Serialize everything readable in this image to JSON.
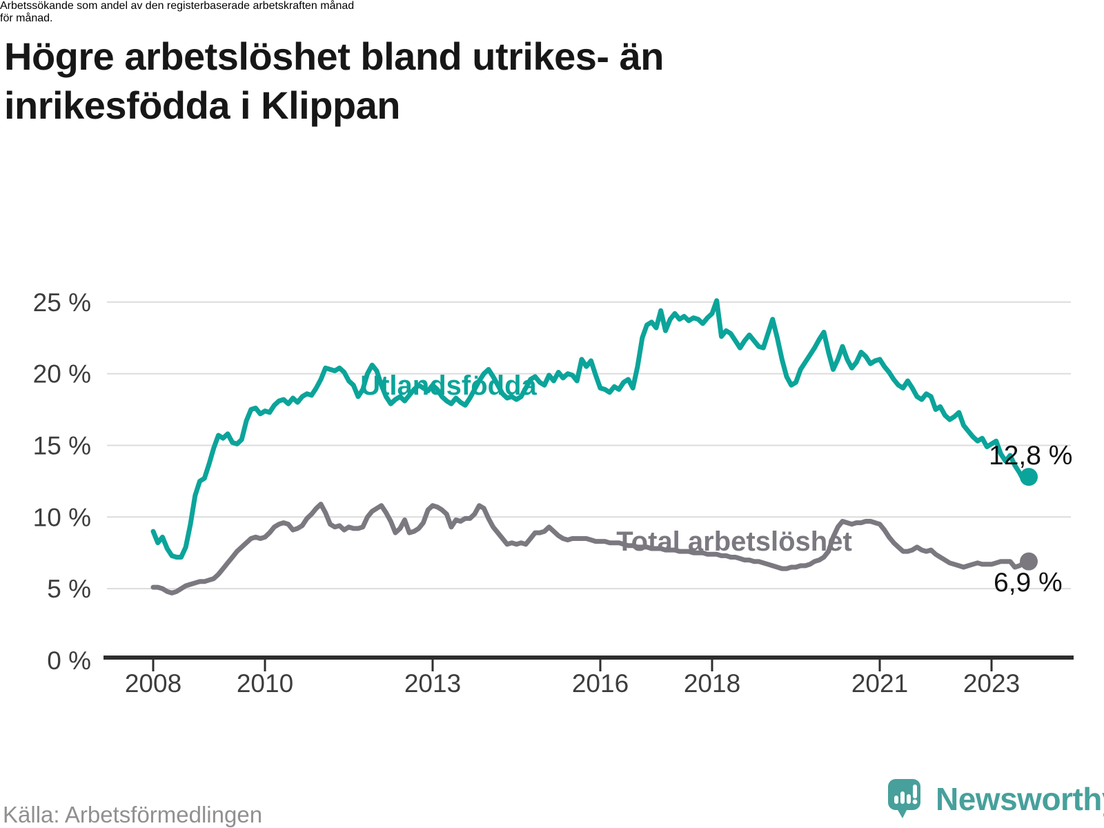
{
  "page": {
    "title_lines": [
      "Högre arbetslöshet bland utrikes- än",
      "inrikesfödda i Klippan"
    ],
    "subtitle_lines": [
      "Arbetssökande som andel av den registerbaserade arbetskraften månad",
      "för månad."
    ],
    "source": "Källa: Arbetsförmedlingen",
    "brand": "Newsworthy",
    "colors": {
      "accent_teal": "#0ba49a",
      "series_gray": "#7b7880",
      "brand_teal": "#47a09b",
      "grid": "#dcdcdc",
      "axis": "#2e2e2e",
      "text": "#171717"
    }
  },
  "chart_data": {
    "type": "line",
    "title": "Högre arbetslöshet bland utrikes- än inrikesfödda i Klippan",
    "subtitle": "Arbetssökande som andel av den registerbaserade arbetskraften månad för månad.",
    "unit": "%",
    "grid": "horizontal",
    "legend_position": "inline-labels",
    "x_axis": {
      "range_years": [
        2007.2,
        2024.3
      ],
      "ticks": [
        2008,
        2010,
        2013,
        2016,
        2018,
        2021,
        2023
      ],
      "tick_labels": [
        "2008",
        "2010",
        "2013",
        "2016",
        "2018",
        "2021",
        "2023"
      ]
    },
    "y_axis": {
      "range": [
        0,
        26.5
      ],
      "ticks": [
        0,
        5,
        10,
        15,
        20,
        25
      ],
      "tick_labels": [
        "0 %",
        "5 %",
        "10 %",
        "15 %",
        "20 %",
        "25 %"
      ]
    },
    "series": [
      {
        "name": "Utlandsfödda",
        "color": "#0ba49a",
        "start_year": 2008,
        "frequency": "monthly",
        "end_value": 12.8,
        "end_label": "12,8 %",
        "values": [
          9.0,
          8.2,
          8.6,
          7.8,
          7.3,
          7.2,
          7.2,
          7.9,
          9.5,
          11.5,
          12.5,
          12.7,
          13.7,
          14.8,
          15.7,
          15.5,
          15.8,
          15.2,
          15.1,
          15.4,
          16.7,
          17.5,
          17.6,
          17.2,
          17.4,
          17.3,
          17.8,
          18.1,
          18.2,
          17.9,
          18.3,
          18.0,
          18.4,
          18.6,
          18.5,
          19.0,
          19.6,
          20.4,
          20.3,
          20.2,
          20.4,
          20.1,
          19.5,
          19.2,
          18.4,
          18.9,
          20.0,
          20.6,
          20.2,
          19.2,
          18.4,
          17.9,
          18.2,
          18.4,
          18.1,
          18.5,
          18.9,
          19.2,
          19.0,
          18.8,
          19.2,
          18.9,
          18.4,
          18.1,
          17.9,
          18.3,
          18.0,
          17.8,
          18.3,
          18.9,
          19.5,
          20.0,
          20.3,
          19.8,
          19.2,
          18.6,
          18.3,
          18.4,
          18.2,
          18.4,
          19.0,
          19.6,
          19.8,
          19.4,
          19.2,
          19.9,
          19.5,
          20.1,
          19.7,
          20.0,
          19.9,
          19.5,
          21.0,
          20.5,
          20.9,
          19.9,
          19.0,
          18.9,
          18.7,
          19.1,
          18.9,
          19.4,
          19.6,
          19.0,
          20.5,
          22.5,
          23.4,
          23.6,
          23.2,
          24.4,
          23.0,
          23.8,
          24.2,
          23.8,
          24.0,
          23.7,
          23.9,
          23.8,
          23.5,
          23.9,
          24.2,
          25.1,
          22.6,
          23.0,
          22.8,
          22.3,
          21.8,
          22.3,
          22.7,
          22.3,
          21.9,
          21.8,
          22.8,
          23.8,
          22.5,
          21.0,
          19.8,
          19.2,
          19.4,
          20.3,
          20.8,
          21.3,
          21.8,
          22.4,
          22.9,
          21.5,
          20.3,
          21.0,
          21.9,
          21.0,
          20.4,
          20.8,
          21.5,
          21.2,
          20.7,
          20.9,
          21.0,
          20.5,
          20.1,
          19.6,
          19.2,
          19.0,
          19.5,
          19.0,
          18.4,
          18.2,
          18.6,
          18.4,
          17.5,
          17.7,
          17.1,
          16.8,
          17.0,
          17.3,
          16.4,
          16.0,
          15.6,
          15.3,
          15.5,
          14.9,
          15.1,
          15.3,
          14.4,
          13.9,
          14.3,
          13.6,
          13.1,
          12.5,
          12.8
        ]
      },
      {
        "name": "Total arbetslöshet",
        "color": "#7b7880",
        "start_year": 2008,
        "frequency": "monthly",
        "end_value": 6.9,
        "end_label": "6,9 %",
        "values": [
          5.1,
          5.1,
          5.0,
          4.8,
          4.7,
          4.8,
          5.0,
          5.2,
          5.3,
          5.4,
          5.5,
          5.5,
          5.6,
          5.7,
          6.0,
          6.4,
          6.8,
          7.2,
          7.6,
          7.9,
          8.2,
          8.5,
          8.6,
          8.5,
          8.6,
          8.9,
          9.3,
          9.5,
          9.6,
          9.5,
          9.1,
          9.2,
          9.4,
          9.9,
          10.2,
          10.6,
          10.9,
          10.3,
          9.5,
          9.3,
          9.4,
          9.1,
          9.3,
          9.2,
          9.2,
          9.3,
          10.0,
          10.4,
          10.6,
          10.8,
          10.3,
          9.7,
          8.9,
          9.2,
          9.8,
          8.9,
          9.0,
          9.2,
          9.6,
          10.5,
          10.8,
          10.7,
          10.5,
          10.2,
          9.3,
          9.8,
          9.7,
          9.9,
          9.9,
          10.2,
          10.8,
          10.6,
          9.9,
          9.3,
          8.9,
          8.5,
          8.1,
          8.2,
          8.1,
          8.2,
          8.1,
          8.5,
          8.9,
          8.9,
          9.0,
          9.3,
          9.0,
          8.7,
          8.5,
          8.4,
          8.5,
          8.5,
          8.5,
          8.5,
          8.4,
          8.3,
          8.3,
          8.3,
          8.2,
          8.2,
          8.2,
          8.1,
          8.0,
          8.0,
          7.9,
          7.9,
          7.9,
          7.8,
          7.8,
          7.8,
          7.7,
          7.7,
          7.7,
          7.6,
          7.6,
          7.6,
          7.5,
          7.5,
          7.5,
          7.4,
          7.4,
          7.4,
          7.3,
          7.3,
          7.2,
          7.2,
          7.1,
          7.0,
          7.0,
          6.9,
          6.9,
          6.8,
          6.7,
          6.6,
          6.5,
          6.4,
          6.4,
          6.5,
          6.5,
          6.6,
          6.6,
          6.7,
          6.9,
          7.0,
          7.2,
          7.6,
          8.6,
          9.3,
          9.7,
          9.6,
          9.5,
          9.6,
          9.6,
          9.7,
          9.7,
          9.6,
          9.5,
          9.1,
          8.6,
          8.2,
          7.9,
          7.6,
          7.6,
          7.7,
          7.9,
          7.7,
          7.6,
          7.7,
          7.4,
          7.2,
          7.0,
          6.8,
          6.7,
          6.6,
          6.5,
          6.6,
          6.7,
          6.8,
          6.7,
          6.7,
          6.7,
          6.8,
          6.9,
          6.9,
          6.9,
          6.5,
          6.6,
          6.8,
          6.9
        ]
      }
    ]
  }
}
